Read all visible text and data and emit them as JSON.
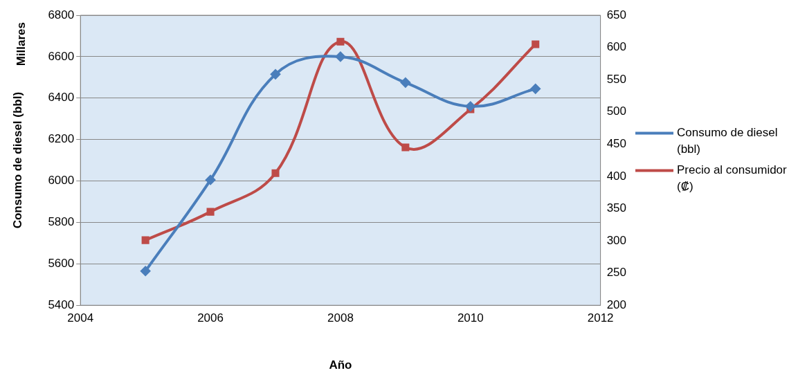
{
  "chart_data": {
    "type": "line",
    "xlabel": "Año",
    "ylabel": "Consumo de diesel (bbl)",
    "annotations": [
      "Millares"
    ],
    "x": [
      2005,
      2006,
      2007,
      2008,
      2009,
      2010,
      2011
    ],
    "series": [
      {
        "name": "Consumo de diesel (bbl)",
        "color": "#4a7ebb",
        "marker": "diamond",
        "values": [
          5565,
          6005,
          6515,
          6600,
          6475,
          6360,
          6445
        ]
      },
      {
        "name": "Precio al consumidor (₡)",
        "color": "#be4b48",
        "marker": "square",
        "axis": "y2",
        "values": [
          301,
          345,
          405,
          609,
          445,
          504,
          605
        ]
      }
    ],
    "xlim": [
      2004,
      2012
    ],
    "xticks": [
      2004,
      2006,
      2008,
      2010,
      2012
    ],
    "ylim": [
      5400,
      6800
    ],
    "yticks": [
      5400,
      5600,
      5800,
      6000,
      6200,
      6400,
      6600,
      6800
    ],
    "y2lim": [
      200,
      650
    ],
    "y2ticks": [
      200,
      250,
      300,
      350,
      400,
      450,
      500,
      550,
      600,
      650
    ],
    "grid": "y",
    "legend": "right"
  }
}
